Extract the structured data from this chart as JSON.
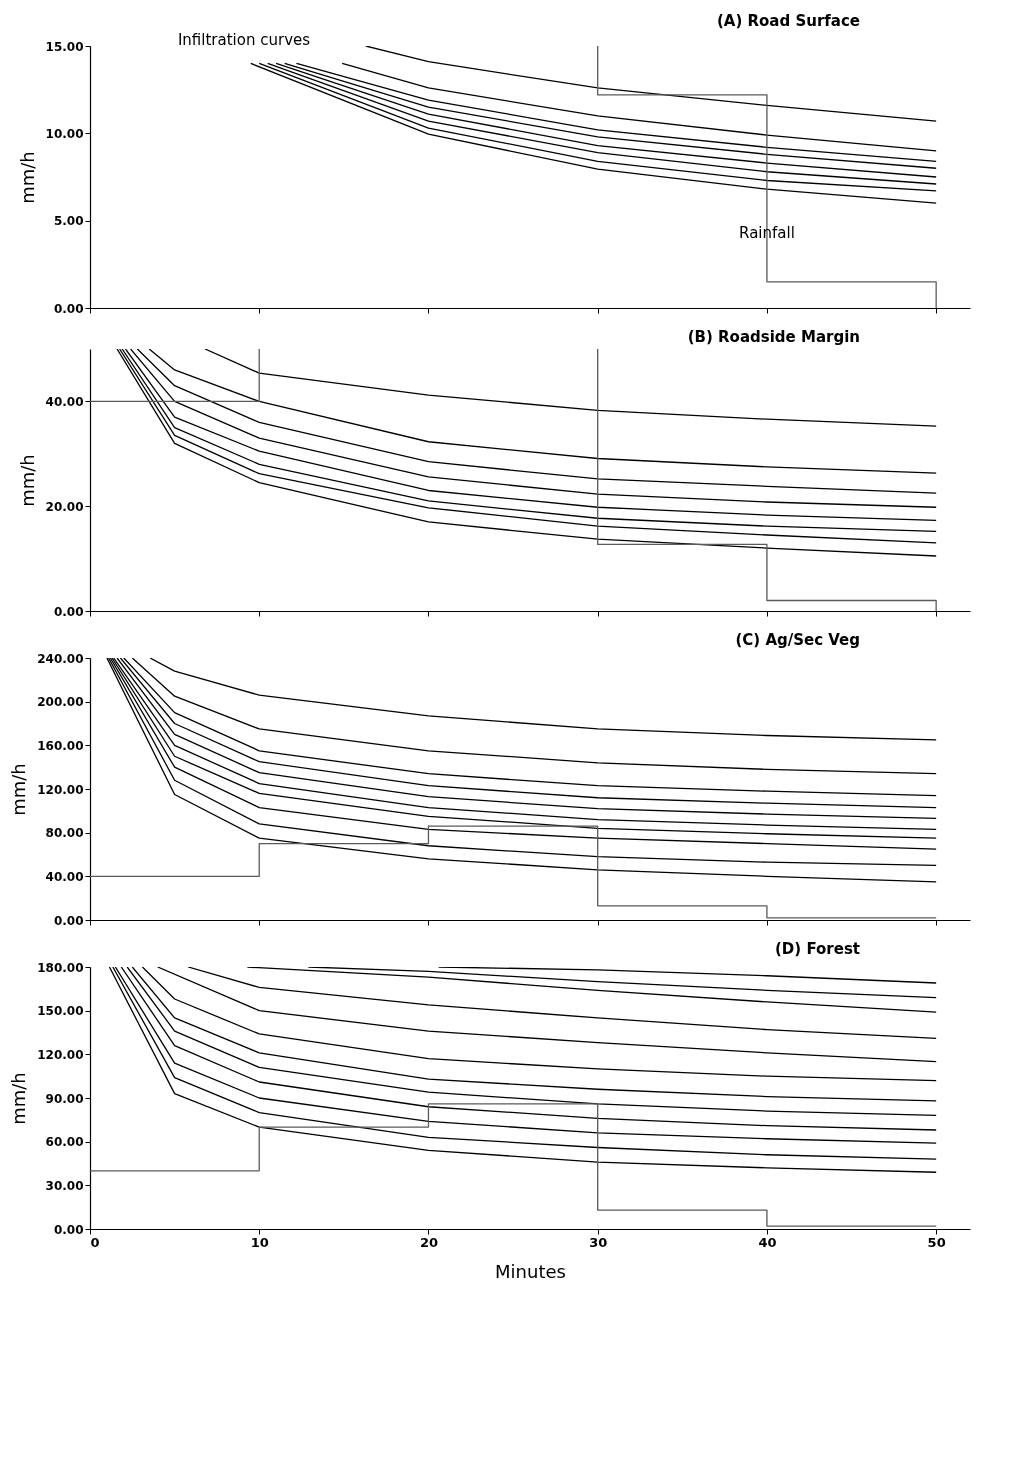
{
  "chart_data": [
    {
      "type": "line",
      "title": "(A) Road Surface",
      "ylabel": "mm/h",
      "xlim": [
        0,
        52
      ],
      "ylim": [
        0,
        15
      ],
      "xticks": [
        {
          "value": 0,
          "label": null
        },
        {
          "value": 10,
          "label": null
        },
        {
          "value": 20,
          "label": null
        },
        {
          "value": 30,
          "label": null
        },
        {
          "value": 40,
          "label": null
        },
        {
          "value": 50,
          "label": null
        }
      ],
      "yticks": [
        {
          "value": 0,
          "label": "0.00"
        },
        {
          "value": 5,
          "label": "5.00"
        },
        {
          "value": 10,
          "label": "10.00"
        },
        {
          "value": 15,
          "label": "15.00"
        }
      ],
      "tick_labels": "y",
      "annotations": [
        "Infiltration curves",
        {
          "text": "Rainfall",
          "x": 40,
          "y": 4.3
        }
      ],
      "series": [
        {
          "color": "#000000",
          "x": [
            16.3,
            20,
            30,
            40,
            50
          ],
          "values": [
            15,
            14.1,
            12.6,
            11.6,
            10.7
          ]
        },
        {
          "color": "#000000",
          "x": [
            14.9,
            20,
            30,
            40,
            50
          ],
          "values": [
            14,
            12.6,
            11.0,
            9.9,
            9.0
          ]
        },
        {
          "color": "#000000",
          "x": [
            12.2,
            20,
            30,
            40,
            50
          ],
          "values": [
            14,
            11.9,
            10.2,
            9.2,
            8.4
          ]
        },
        {
          "color": "#000000",
          "x": [
            11.5,
            20,
            30,
            40,
            50
          ],
          "values": [
            14,
            11.5,
            9.8,
            8.8,
            8.0
          ]
        },
        {
          "color": "#000000",
          "x": [
            11,
            20,
            30,
            40,
            50
          ],
          "values": [
            14,
            11.1,
            9.3,
            8.3,
            7.5
          ]
        },
        {
          "color": "#000000",
          "x": [
            10.5,
            20,
            30,
            40,
            50
          ],
          "values": [
            14,
            10.7,
            8.9,
            7.8,
            7.1
          ]
        },
        {
          "color": "#000000",
          "x": [
            10,
            20,
            30,
            40,
            50
          ],
          "values": [
            14,
            10.3,
            8.4,
            7.3,
            6.7
          ]
        },
        {
          "color": "#000000",
          "x": [
            9.5,
            20,
            30,
            40,
            50
          ],
          "values": [
            14,
            9.95,
            7.95,
            6.8,
            6.0
          ]
        },
        {
          "color": "#5a5a5a",
          "x": [
            30,
            30,
            40,
            40,
            50,
            50
          ],
          "values": [
            15,
            12.2,
            12.2,
            1.5,
            1.5,
            0
          ]
        }
      ]
    },
    {
      "type": "line",
      "title": "(B) Roadside Margin",
      "ylabel": "mm/h",
      "xlim": [
        0,
        52
      ],
      "ylim": [
        0,
        50
      ],
      "xticks": [
        {
          "value": 0,
          "label": null
        },
        {
          "value": 10,
          "label": null
        },
        {
          "value": 20,
          "label": null
        },
        {
          "value": 30,
          "label": null
        },
        {
          "value": 40,
          "label": null
        },
        {
          "value": 50,
          "label": null
        }
      ],
      "yticks": [
        {
          "value": 0,
          "label": "0.00"
        },
        {
          "value": 20,
          "label": "20.00"
        },
        {
          "value": 40,
          "label": "40.00"
        }
      ],
      "tick_labels": "y",
      "series": [
        {
          "color": "#000000",
          "x": [
            6.8,
            10,
            20,
            30,
            40,
            50
          ],
          "values": [
            50,
            45.4,
            41.2,
            38.3,
            36.6,
            35.3
          ]
        },
        {
          "color": "#000000",
          "x": [
            3.5,
            5,
            10,
            20,
            30,
            40,
            50
          ],
          "values": [
            50,
            46,
            40,
            32.3,
            29.1,
            27.5,
            26.3
          ]
        },
        {
          "color": "#000000",
          "x": [
            2.8,
            5,
            10,
            20,
            30,
            40,
            50
          ],
          "values": [
            50,
            43,
            36,
            28.5,
            25.2,
            23.8,
            22.5
          ]
        },
        {
          "color": "#000000",
          "x": [
            2.4,
            5,
            10,
            20,
            30,
            40,
            50
          ],
          "values": [
            50,
            40,
            33,
            25.6,
            22.3,
            20.8,
            19.8
          ]
        },
        {
          "color": "#000000",
          "x": [
            2.1,
            5,
            10,
            20,
            30,
            40,
            50
          ],
          "values": [
            50,
            37,
            30.5,
            23,
            19.8,
            18.3,
            17.3
          ]
        },
        {
          "color": "#000000",
          "x": [
            1.9,
            5,
            10,
            20,
            30,
            40,
            50
          ],
          "values": [
            50,
            35,
            28,
            21,
            17.7,
            16.2,
            15.2
          ]
        },
        {
          "color": "#000000",
          "x": [
            1.75,
            5,
            10,
            20,
            30,
            40,
            50
          ],
          "values": [
            50,
            33.5,
            26.2,
            19.7,
            16.2,
            14.5,
            13.0
          ]
        },
        {
          "color": "#000000",
          "x": [
            1.6,
            5,
            10,
            20,
            30,
            40,
            50
          ],
          "values": [
            50,
            32,
            24.5,
            17,
            13.7,
            12.0,
            10.5
          ]
        },
        {
          "color": "#5a5a5a",
          "x": [
            0,
            10,
            10
          ],
          "values": [
            40,
            40,
            50
          ]
        },
        {
          "color": "#5a5a5a",
          "x": [
            30,
            30,
            40,
            40,
            50,
            50
          ],
          "values": [
            50,
            12.7,
            12.7,
            2.0,
            2.0,
            0
          ]
        }
      ]
    },
    {
      "type": "line",
      "title": "(C) Ag/Sec Veg",
      "ylabel": "mm/h",
      "xlim": [
        0,
        52
      ],
      "ylim": [
        0,
        240
      ],
      "xticks": [
        {
          "value": 0,
          "label": null
        },
        {
          "value": 10,
          "label": null
        },
        {
          "value": 20,
          "label": null
        },
        {
          "value": 30,
          "label": null
        },
        {
          "value": 40,
          "label": null
        },
        {
          "value": 50,
          "label": null
        }
      ],
      "yticks": [
        {
          "value": 0,
          "label": "0.00"
        },
        {
          "value": 40,
          "label": "40.00"
        },
        {
          "value": 80,
          "label": "80.00"
        },
        {
          "value": 120,
          "label": "120.00"
        },
        {
          "value": 160,
          "label": "160.00"
        },
        {
          "value": 200,
          "label": "200.00"
        },
        {
          "value": 240,
          "label": "240.00"
        }
      ],
      "tick_labels": "y",
      "series": [
        {
          "color": "#000000",
          "x": [
            3.55,
            5,
            10,
            20,
            30,
            40,
            50
          ],
          "values": [
            240,
            228,
            206,
            187,
            175,
            169,
            165
          ]
        },
        {
          "color": "#000000",
          "x": [
            2.5,
            5,
            10,
            20,
            30,
            40,
            50
          ],
          "values": [
            240,
            205,
            175,
            155,
            144,
            138,
            134
          ]
        },
        {
          "color": "#000000",
          "x": [
            2.0,
            5,
            10,
            20,
            30,
            40,
            50
          ],
          "values": [
            240,
            190,
            155,
            134,
            123,
            118,
            114
          ]
        },
        {
          "color": "#000000",
          "x": [
            1.8,
            5,
            10,
            20,
            30,
            40,
            50
          ],
          "values": [
            240,
            180,
            145,
            123,
            112,
            107,
            103
          ]
        },
        {
          "color": "#000000",
          "x": [
            1.6,
            5,
            10,
            20,
            30,
            40,
            50
          ],
          "values": [
            240,
            170,
            135,
            113,
            102,
            97,
            93
          ]
        },
        {
          "color": "#000000",
          "x": [
            1.4,
            5,
            10,
            20,
            30,
            40,
            50
          ],
          "values": [
            240,
            160,
            125,
            103,
            92,
            87,
            83
          ]
        },
        {
          "color": "#000000",
          "x": [
            1.3,
            5,
            10,
            20,
            30,
            40,
            50
          ],
          "values": [
            240,
            150,
            116,
            95,
            84,
            79,
            75
          ]
        },
        {
          "color": "#000000",
          "x": [
            1.2,
            5,
            10,
            20,
            30,
            40,
            50
          ],
          "values": [
            240,
            140,
            103,
            83,
            75,
            70,
            65
          ]
        },
        {
          "color": "#000000",
          "x": [
            1.1,
            5,
            10,
            20,
            30,
            40,
            50
          ],
          "values": [
            240,
            128,
            88,
            68,
            58,
            53,
            50
          ]
        },
        {
          "color": "#000000",
          "x": [
            1.0,
            5,
            10,
            20,
            30,
            40,
            50
          ],
          "values": [
            240,
            115,
            75,
            56,
            46,
            40,
            35
          ]
        },
        {
          "color": "#5a5a5a",
          "x": [
            0,
            10,
            10,
            20,
            20,
            30,
            30,
            40,
            40,
            50
          ],
          "values": [
            40,
            40,
            70,
            70,
            86,
            86,
            13,
            13,
            2,
            2
          ]
        }
      ]
    },
    {
      "type": "line",
      "title": "(D) Forest",
      "xlabel": "Minutes",
      "ylabel": "mm/h",
      "xlim": [
        0,
        52
      ],
      "ylim": [
        0,
        180
      ],
      "xticks": [
        0,
        10,
        20,
        30,
        40,
        50
      ],
      "yticks": [
        {
          "value": 0,
          "label": "0.00"
        },
        {
          "value": 30,
          "label": "30.00"
        },
        {
          "value": 60,
          "label": "60.00"
        },
        {
          "value": 90,
          "label": "90.00"
        },
        {
          "value": 120,
          "label": "120.00"
        },
        {
          "value": 150,
          "label": "150.00"
        },
        {
          "value": 180,
          "label": "180.00"
        }
      ],
      "series": [
        {
          "color": "#000000",
          "x": [
            20.6,
            30,
            40,
            50
          ],
          "values": [
            180,
            178,
            174,
            169
          ]
        },
        {
          "color": "#000000",
          "x": [
            12.9,
            20,
            30,
            40,
            50
          ],
          "values": [
            180,
            177,
            170,
            164,
            159
          ]
        },
        {
          "color": "#000000",
          "x": [
            9.3,
            20,
            30,
            40,
            50
          ],
          "values": [
            180,
            173,
            164,
            156,
            149
          ]
        },
        {
          "color": "#000000",
          "x": [
            5.8,
            10,
            20,
            30,
            40,
            50
          ],
          "values": [
            180,
            166,
            154,
            145,
            137,
            131
          ]
        },
        {
          "color": "#000000",
          "x": [
            4,
            10,
            20,
            30,
            40,
            50
          ],
          "values": [
            180,
            150,
            136,
            128,
            121,
            115
          ]
        },
        {
          "color": "#000000",
          "x": [
            3.1,
            5,
            10,
            20,
            30,
            40,
            50
          ],
          "values": [
            180,
            158,
            134,
            117,
            110,
            105,
            102
          ]
        },
        {
          "color": "#000000",
          "x": [
            2.5,
            5,
            10,
            20,
            30,
            40,
            50
          ],
          "values": [
            180,
            145,
            121,
            103,
            96,
            91,
            88
          ]
        },
        {
          "color": "#000000",
          "x": [
            2.2,
            5,
            10,
            20,
            30,
            40,
            50
          ],
          "values": [
            180,
            136,
            111,
            94,
            86,
            81,
            78
          ]
        },
        {
          "color": "#000000",
          "x": [
            1.85,
            5,
            10,
            20,
            30,
            40,
            50
          ],
          "values": [
            180,
            126,
            101,
            84,
            76,
            71,
            68
          ]
        },
        {
          "color": "#000000",
          "x": [
            1.5,
            5,
            10,
            20,
            30,
            40,
            50
          ],
          "values": [
            180,
            114,
            90,
            74,
            66,
            62,
            59
          ]
        },
        {
          "color": "#000000",
          "x": [
            1.35,
            5,
            10,
            20,
            30,
            40,
            50
          ],
          "values": [
            180,
            104,
            80,
            63,
            56,
            51,
            48
          ]
        },
        {
          "color": "#000000",
          "x": [
            1.15,
            5,
            10,
            20,
            30,
            40,
            50
          ],
          "values": [
            180,
            93,
            70,
            54,
            46,
            42,
            39
          ]
        },
        {
          "color": "#5a5a5a",
          "x": [
            0,
            10,
            10,
            20,
            20,
            30,
            30,
            40,
            40,
            50
          ],
          "values": [
            40,
            40,
            70,
            70,
            86,
            86,
            13,
            13,
            2,
            2
          ]
        }
      ]
    }
  ]
}
